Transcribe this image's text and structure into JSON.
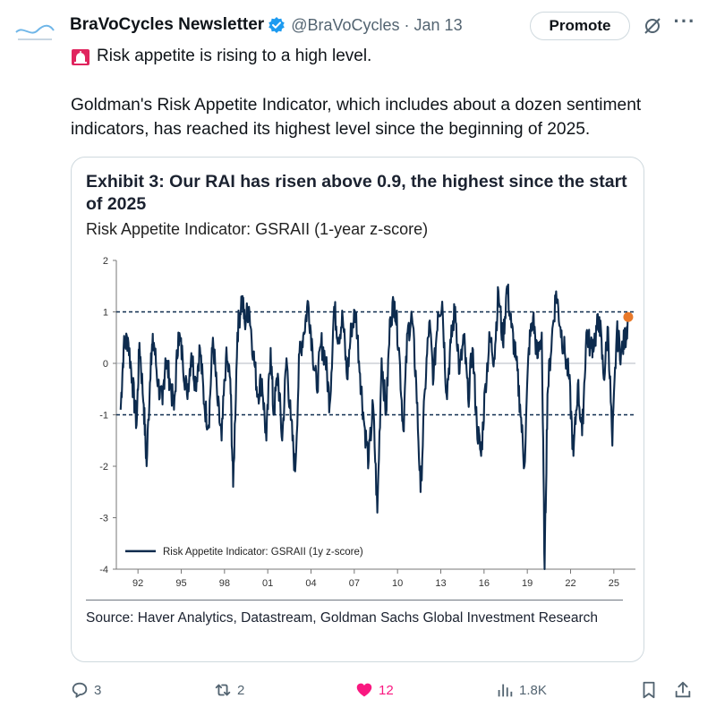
{
  "tweet": {
    "author_name": "BraVoCycles Newsletter",
    "handle": "@BraVoCycles",
    "separator": "·",
    "date": "Jan 13",
    "promote_label": "Promote",
    "more_label": "···",
    "line1": "Risk appetite is rising to a high level.",
    "body": "Goldman's Risk Appetite Indicator, which includes about a dozen sentiment indicators, has reached its highest level since the beginning of 2025."
  },
  "card": {
    "title": "Exhibit 3: Our RAI has risen above 0.9, the highest since the start of 2025",
    "subtitle": "Risk Appetite Indicator: GSRAII (1-year z-score)",
    "source": "Source: Haver Analytics, Datastream, Goldman Sachs Global Investment Research"
  },
  "actions": {
    "replies": "3",
    "reposts": "2",
    "likes": "12",
    "views": "1.8K"
  },
  "colors": {
    "series": "#0d2b4e",
    "marker": "#e8792a",
    "like": "#f91880",
    "verified": "#1d9bf0",
    "alarm": "#e0245e"
  },
  "chart_data": {
    "type": "line",
    "title": "Exhibit 3: Our RAI has risen above 0.9, the highest since the start of 2025",
    "subtitle": "Risk Appetite Indicator: GSRAII (1-year z-score)",
    "ylim": [
      -4,
      2
    ],
    "yticks": [
      "2",
      "1",
      "0",
      "-1",
      "-2",
      "-3",
      "-4"
    ],
    "xlim": [
      1990.5,
      2026.5
    ],
    "xticks": [
      "92",
      "95",
      "98",
      "01",
      "04",
      "07",
      "10",
      "13",
      "16",
      "19",
      "22",
      "25"
    ],
    "reference_lines": [
      1,
      -1
    ],
    "legend": "Risk Appetite Indicator: GSRAII (1y z-score)",
    "legend_position": "bottom-left",
    "series": [
      {
        "name": "Risk Appetite Indicator: GSRAII (1y z-score)",
        "x": [
          1990.8,
          1991.0,
          1991.3,
          1991.6,
          1991.9,
          1992.1,
          1992.4,
          1992.6,
          1992.9,
          1993.1,
          1993.4,
          1993.7,
          1993.9,
          1994.2,
          1994.5,
          1994.8,
          1995.1,
          1995.4,
          1995.7,
          1996.0,
          1996.3,
          1996.6,
          1996.9,
          1997.2,
          1997.5,
          1997.8,
          1998.1,
          1998.4,
          1998.6,
          1998.9,
          1999.2,
          1999.4,
          1999.7,
          2000.0,
          2000.3,
          2000.6,
          2000.9,
          2001.2,
          2001.4,
          2001.7,
          2002.0,
          2002.3,
          2002.6,
          2002.9,
          2003.2,
          2003.5,
          2003.8,
          2004.1,
          2004.4,
          2004.7,
          2005.0,
          2005.3,
          2005.6,
          2005.9,
          2006.2,
          2006.5,
          2006.8,
          2007.1,
          2007.4,
          2007.7,
          2008.0,
          2008.3,
          2008.6,
          2008.9,
          2009.2,
          2009.5,
          2009.8,
          2010.1,
          2010.4,
          2010.7,
          2011.0,
          2011.3,
          2011.6,
          2011.9,
          2012.2,
          2012.5,
          2012.8,
          2013.1,
          2013.4,
          2013.7,
          2014.0,
          2014.3,
          2014.6,
          2014.9,
          2015.2,
          2015.5,
          2015.8,
          2016.1,
          2016.4,
          2016.7,
          2017.0,
          2017.3,
          2017.6,
          2017.9,
          2018.2,
          2018.5,
          2018.8,
          2019.1,
          2019.4,
          2019.7,
          2020.0,
          2020.2,
          2020.4,
          2020.7,
          2021.0,
          2021.3,
          2021.6,
          2021.9,
          2022.2,
          2022.5,
          2022.8,
          2023.1,
          2023.4,
          2023.7,
          2024.0,
          2024.3,
          2024.6,
          2024.9,
          2025.2,
          2025.5,
          2025.8,
          2026.0
        ],
        "values": [
          -0.9,
          0.3,
          0.5,
          -0.3,
          -1.2,
          0.4,
          -0.8,
          -2.0,
          0.2,
          0.4,
          -0.4,
          -0.8,
          0.1,
          -0.3,
          -0.9,
          0.6,
          0.1,
          -0.6,
          0.2,
          -0.4,
          0.3,
          -0.8,
          -1.2,
          0.5,
          -0.7,
          -1.5,
          0.1,
          -0.3,
          -2.4,
          0.6,
          1.3,
          0.8,
          1.1,
          0.2,
          -0.6,
          -0.3,
          -1.5,
          0.3,
          -1.0,
          -0.2,
          -1.5,
          0.1,
          -1.1,
          -2.1,
          0.2,
          0.6,
          1.2,
          0.3,
          -0.5,
          0.4,
          0.1,
          -0.8,
          1.1,
          0.5,
          0.9,
          -0.3,
          0.7,
          1.0,
          -0.2,
          -1.2,
          -1.9,
          -0.8,
          -2.9,
          0.1,
          -1.0,
          0.9,
          1.2,
          0.3,
          -1.3,
          0.6,
          0.9,
          -0.4,
          -2.5,
          -0.5,
          0.8,
          -0.3,
          1.0,
          1.2,
          -0.6,
          0.4,
          1.1,
          -0.2,
          0.5,
          -0.7,
          0.3,
          -1.2,
          -1.8,
          -0.4,
          0.5,
          0.1,
          1.4,
          0.4,
          1.5,
          0.7,
          0.1,
          -0.8,
          -2.0,
          0.3,
          0.9,
          0.1,
          0.6,
          -4.0,
          -0.6,
          0.5,
          1.4,
          0.7,
          0.2,
          -0.3,
          -1.8,
          -0.4,
          -1.4,
          0.6,
          0.3,
          0.5,
          0.9,
          -0.3,
          0.7,
          -1.6,
          0.6,
          0.2,
          0.5,
          0.9
        ]
      }
    ],
    "latest_marker": {
      "x": 2026.0,
      "y": 0.9
    }
  }
}
